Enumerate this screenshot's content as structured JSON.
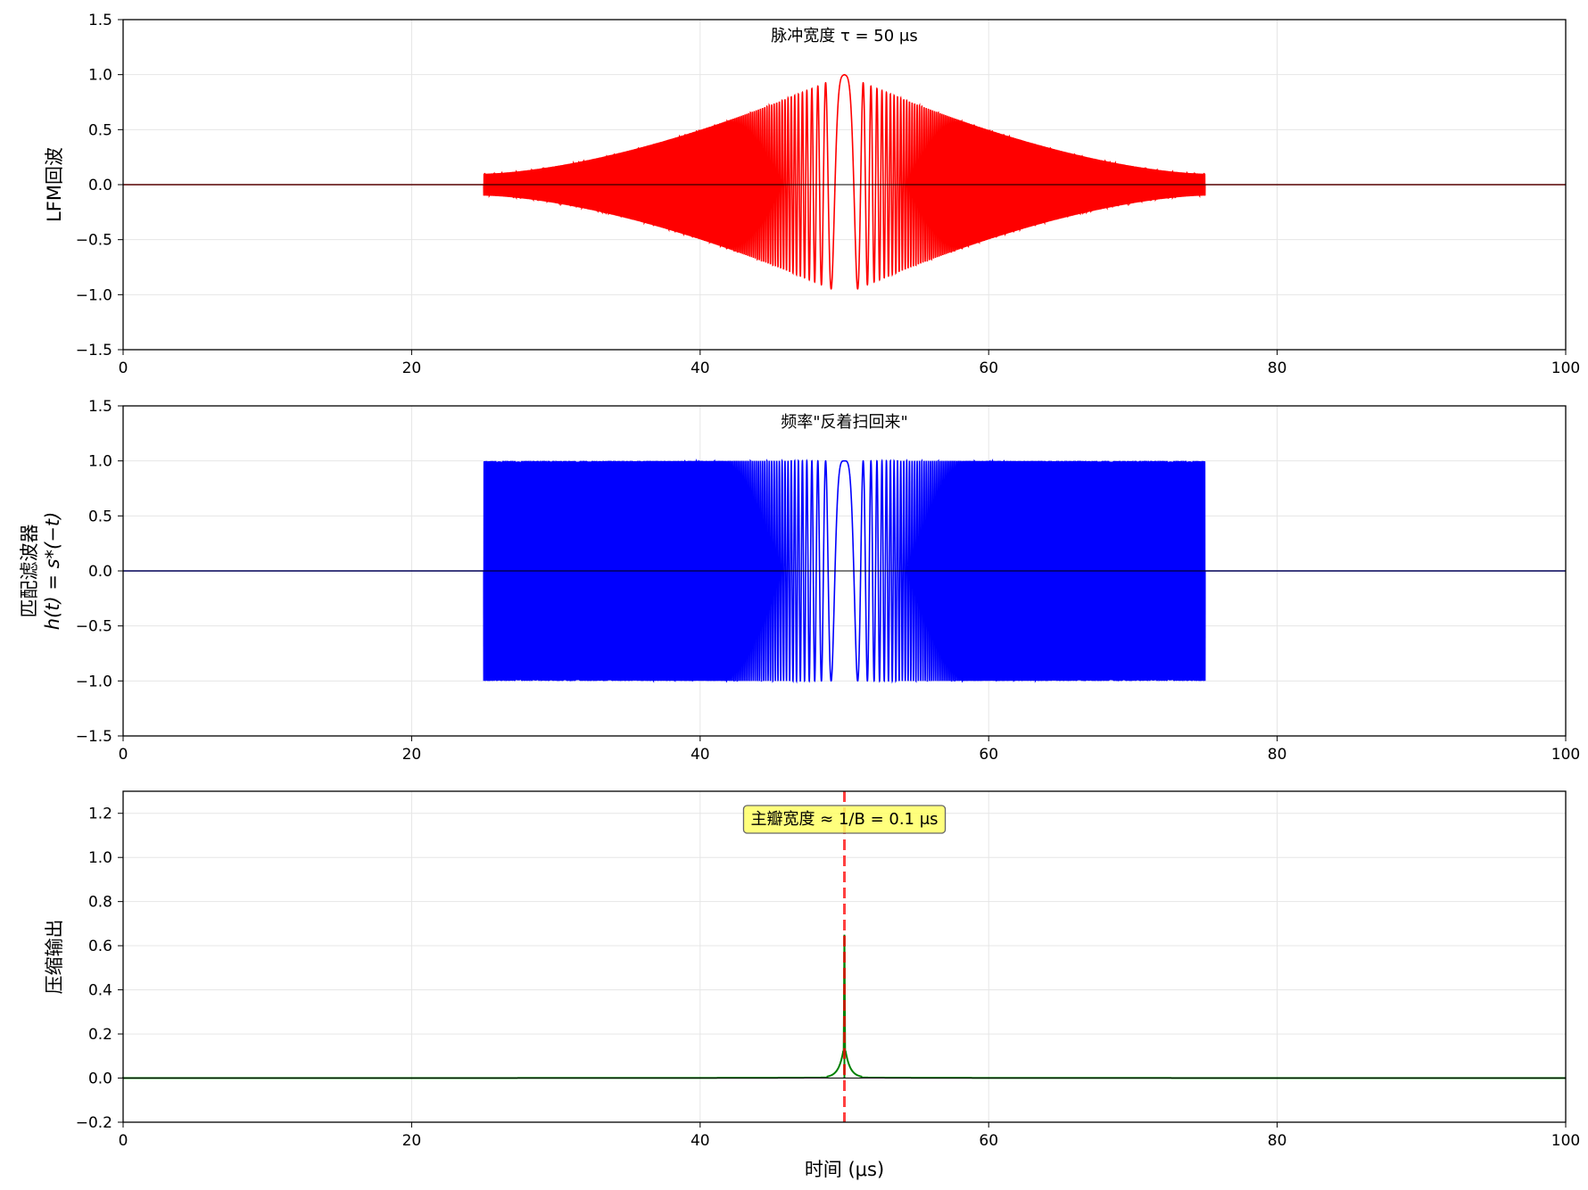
{
  "chart_data": [
    {
      "type": "line",
      "panel": 1,
      "title": "",
      "annotation": "脉冲宽度 τ = 50 μs",
      "xlabel": "",
      "ylabel": "LFM回波",
      "xlim": [
        0,
        100
      ],
      "ylim": [
        -1.5,
        1.5
      ],
      "xticks": [
        "0",
        "20",
        "40",
        "60",
        "80",
        "100"
      ],
      "yticks": [
        "1.5",
        "1.0",
        "0.5",
        "0.0",
        "−0.5",
        "−1.0",
        "−1.5"
      ],
      "grid": true,
      "series": [
        {
          "color": "#ff0000",
          "description": "LFM echo, nonzero from t=25 to t=75 μs, envelope rising from ~0.1 at edges to 1.0 near t=50",
          "t_start": 25,
          "t_end": 75,
          "center": 50,
          "peak": 1.0
        }
      ]
    },
    {
      "type": "line",
      "panel": 2,
      "title": "",
      "annotation": "频率\"反着扫回来\"",
      "xlabel": "",
      "ylabel": "匹配滤波器",
      "ylabel_line2": "h(t) = s*(−t)",
      "xlim": [
        0,
        100
      ],
      "ylim": [
        -1.5,
        1.5
      ],
      "xticks": [
        "0",
        "20",
        "40",
        "60",
        "80",
        "100"
      ],
      "yticks": [
        "1.5",
        "1.0",
        "0.5",
        "0.0",
        "−0.5",
        "−1.0",
        "−1.5"
      ],
      "grid": true,
      "series": [
        {
          "color": "#0000ff",
          "description": "matched filter, constant amplitude 1.0 from t=25 to t=75 μs, chirp densest near edges of center",
          "t_start": 25,
          "t_end": 75,
          "center": 50,
          "amplitude": 1.0
        }
      ]
    },
    {
      "type": "line",
      "panel": 3,
      "title": "",
      "annotation": "主瓣宽度 ≈ 1/B = 0.1 μs",
      "xlabel": "时间 (μs)",
      "ylabel": "压缩输出",
      "xlim": [
        0,
        100
      ],
      "ylim": [
        -0.2,
        1.3
      ],
      "xticks": [
        "0",
        "20",
        "40",
        "60",
        "80",
        "100"
      ],
      "yticks": [
        "1.2",
        "1.0",
        "0.8",
        "0.6",
        "0.4",
        "0.2",
        "0.0",
        "−0.2"
      ],
      "grid": true,
      "series": [
        {
          "color": "#008000",
          "description": "compressed output, near zero everywhere with sharp peak at t=50",
          "peak_x": 50,
          "peak_y": 0.65
        }
      ],
      "vline": {
        "x": 50,
        "color": "#ff0000",
        "style": "dashed"
      }
    }
  ]
}
